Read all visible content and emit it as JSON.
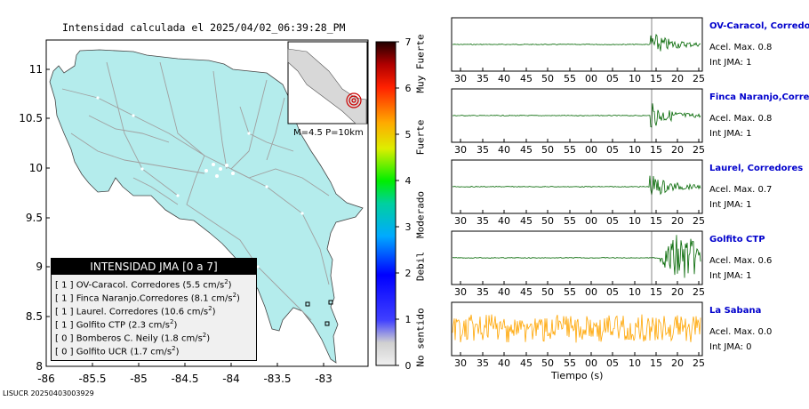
{
  "map": {
    "title": "Intensidad calculada el 2025/04/02_06:39:28_PM",
    "yticks": [
      "11",
      "10.5",
      "10",
      "9.5",
      "9",
      "8.5",
      "8"
    ],
    "xticks": [
      "-86",
      "-85.5",
      "-85",
      "-84.5",
      "-84",
      "-83.5",
      "-83"
    ],
    "inset_label": "M=4.5 P=10km",
    "land_color": "#b4ecec",
    "road_color": "#aaaaaa"
  },
  "legend": {
    "title": "INTENSIDAD JMA [0 a 7]",
    "items": [
      {
        "level": "[ 1 ]",
        "name": "OV-Caracol. Corredores",
        "value": "(5.5 cm/s",
        "unit_sup": "2",
        "close": ")"
      },
      {
        "level": "[ 1 ]",
        "name": "Finca Naranjo.Corredores",
        "value": "(8.1 cm/s",
        "unit_sup": "2",
        "close": ")"
      },
      {
        "level": "[ 1 ]",
        "name": "Laurel. Corredores",
        "value": "(10.6 cm/s",
        "unit_sup": "2",
        "close": ")"
      },
      {
        "level": "[ 1 ]",
        "name": "Golfito CTP",
        "value": "(2.3 cm/s",
        "unit_sup": "2",
        "close": ")"
      },
      {
        "level": "[ 0 ]",
        "name": "Bomberos C. Neily",
        "value": "(1.8 cm/s",
        "unit_sup": "2",
        "close": ")"
      },
      {
        "level": "[ 0 ]",
        "name": "Golfito UCR",
        "value": "(1.7 cm/s",
        "unit_sup": "2",
        "close": ")"
      }
    ]
  },
  "colorbar": {
    "ticks": [
      "7",
      "6",
      "5",
      "4",
      "3",
      "2",
      "1",
      "0"
    ],
    "labels": [
      "Muy Fuerte",
      "Fuerte",
      "Moderado",
      "Debil",
      "No sentido"
    ]
  },
  "stations": [
    {
      "name": "OV-Caracol, Corredore",
      "acel": "Acel. Max. 0.8",
      "int": "Int JMA: 1",
      "color": "#006600"
    },
    {
      "name": "Finca Naranjo,Corredor",
      "acel": "Acel. Max. 0.8",
      "int": "Int JMA: 1",
      "color": "#006600"
    },
    {
      "name": "Laurel, Corredores",
      "acel": "Acel. Max. 0.7",
      "int": "Int JMA: 1",
      "color": "#006600"
    },
    {
      "name": "Golfito CTP",
      "acel": "Acel. Max. 0.6",
      "int": "Int JMA: 1",
      "color": "#006600"
    },
    {
      "name": "La Sabana",
      "acel": "Acel. Max. 0.0",
      "int": "Int JMA: 0",
      "color": "#ffa500"
    }
  ],
  "time_ticks": [
    "30",
    "35",
    "40",
    "45",
    "50",
    "55",
    "00",
    "05",
    "10",
    "15",
    "20",
    "25"
  ],
  "xlabel": "Tiempo (s)",
  "footer": "LISUCR 20250403003929"
}
